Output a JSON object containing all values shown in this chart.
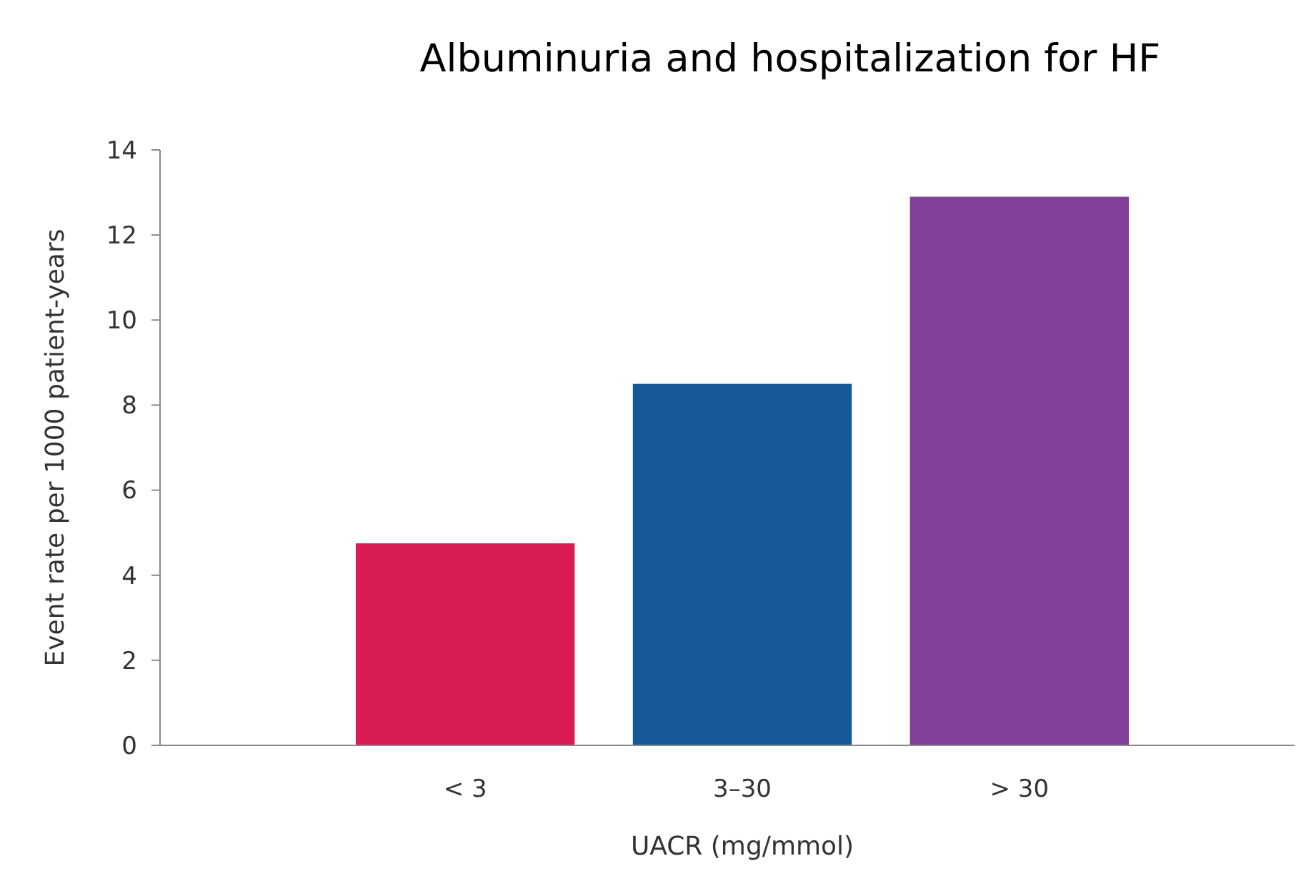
{
  "chart_data": {
    "type": "bar",
    "title": "Albuminuria and hospitalization for HF",
    "xlabel": "UACR (mg/mmol)",
    "ylabel": "Event rate per 1000 patient-years",
    "categories": [
      "< 3",
      "3–30",
      "> 30"
    ],
    "values": [
      4.75,
      8.5,
      12.9
    ],
    "colors": [
      "#d81b52",
      "#155a96",
      "#83409a"
    ],
    "ylim": [
      0,
      14
    ],
    "yticks": [
      0,
      2,
      4,
      6,
      8,
      10,
      12,
      14
    ],
    "grid": false
  }
}
